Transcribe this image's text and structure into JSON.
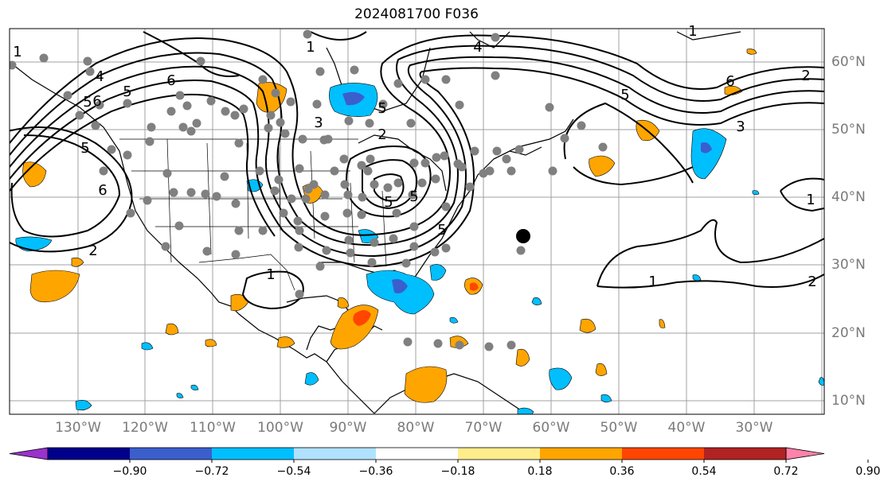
{
  "title": "2024081700 F036",
  "lon_labels": [
    "130°W",
    "120°W",
    "110°W",
    "100°W",
    "90°W",
    "80°W",
    "70°W",
    "60°W",
    "50°W",
    "40°W",
    "30°W"
  ],
  "lat_labels": [
    "60°N",
    "50°N",
    "40°N",
    "30°N",
    "20°N",
    "10°N"
  ],
  "colorbar": {
    "ticks": [
      "−0.90",
      "−0.72",
      "−0.54",
      "−0.36",
      "−0.18",
      "0.18",
      "0.36",
      "0.54",
      "0.72",
      "0.90"
    ],
    "colors": [
      "#9a32cd",
      "#00008b",
      "#3a5fcd",
      "#00bfff",
      "#b0e2ff",
      "#ffffff",
      "#ffec8b",
      "#ffa500",
      "#ff4500",
      "#b22222",
      "#ff82ab"
    ]
  },
  "contour_labels": [
    "1",
    "2",
    "4",
    "5",
    "6",
    "5",
    "6",
    "5",
    "6",
    "5",
    "4",
    "3",
    "2",
    "1",
    "5",
    "5",
    "1",
    "2",
    "1",
    "1",
    "1",
    "5",
    "6",
    "5",
    "3",
    "2"
  ],
  "colors": {
    "positive": "#ffa500",
    "positive_strong": "#ff4500",
    "negative": "#00bfff",
    "negative_strong": "#3a5fcd",
    "station": "#808080",
    "marker": "#000000"
  }
}
